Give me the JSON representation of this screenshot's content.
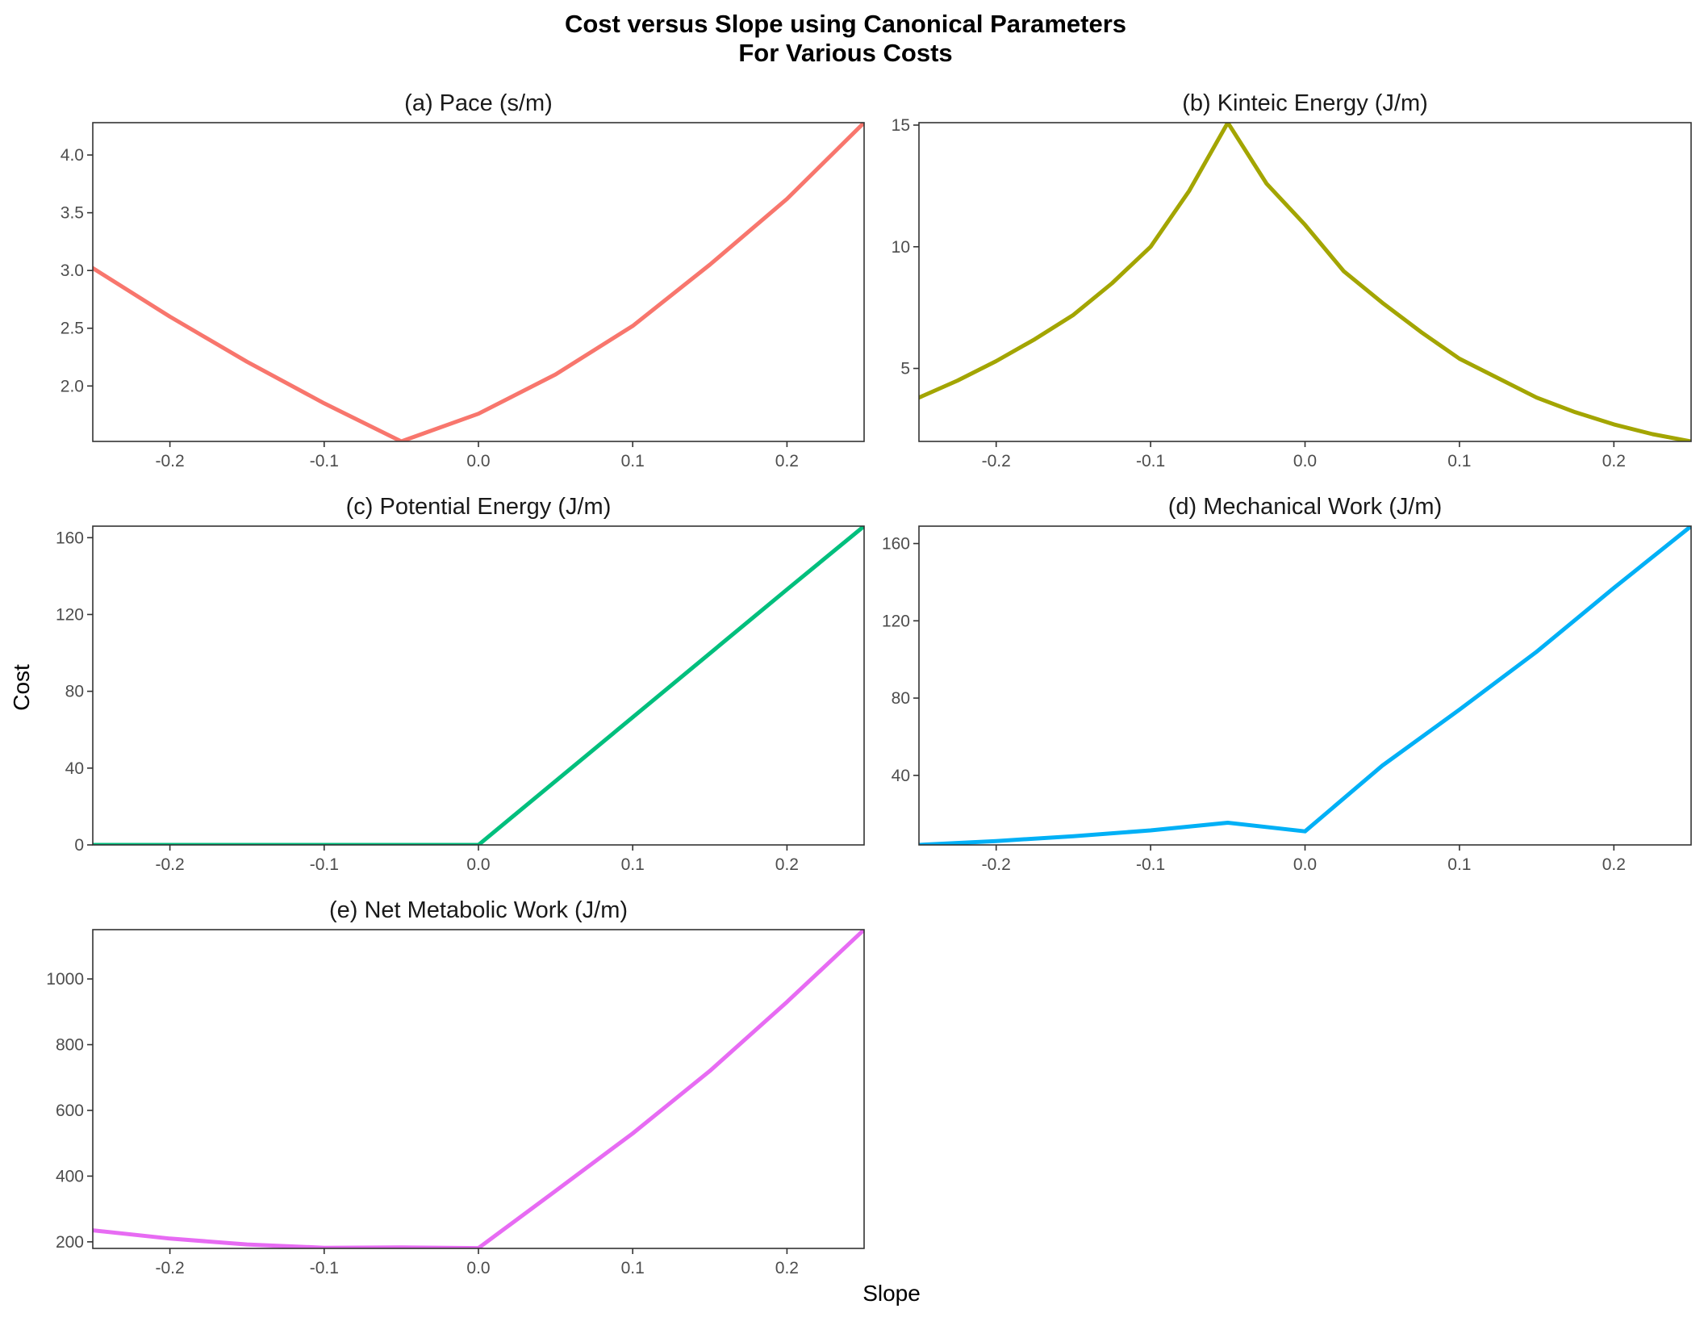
{
  "title_line1": "Cost versus Slope using Canonical Parameters",
  "title_line2": "For Various Costs",
  "xlabel": "Slope",
  "ylabel": "Cost",
  "chart_data": [
    {
      "type": "line",
      "title": "(a)  Pace (s/m)",
      "color": "#F8766D",
      "xlim": [
        -0.25,
        0.25
      ],
      "ylim": [
        1.52,
        4.28
      ],
      "xticks": [
        -0.2,
        -0.1,
        0.0,
        0.1,
        0.2
      ],
      "xtick_labels": [
        "-0.2",
        "-0.1",
        "0.0",
        "0.1",
        "0.2"
      ],
      "yticks": [
        2.0,
        2.5,
        3.0,
        3.5,
        4.0
      ],
      "ytick_labels": [
        "2.0",
        "2.5",
        "3.0",
        "3.5",
        "4.0"
      ],
      "x": [
        -0.25,
        -0.2,
        -0.15,
        -0.1,
        -0.05,
        0.0,
        0.05,
        0.1,
        0.15,
        0.2,
        0.25
      ],
      "y": [
        3.02,
        2.6,
        2.21,
        1.85,
        1.52,
        1.76,
        2.1,
        2.52,
        3.05,
        3.62,
        4.28
      ]
    },
    {
      "type": "line",
      "title": "(b)  Kinteic Energy (J/m)",
      "color": "#A3A500",
      "xlim": [
        -0.25,
        0.25
      ],
      "ylim": [
        2.0,
        15.1
      ],
      "xticks": [
        -0.2,
        -0.1,
        0.0,
        0.1,
        0.2
      ],
      "xtick_labels": [
        "-0.2",
        "-0.1",
        "0.0",
        "0.1",
        "0.2"
      ],
      "yticks": [
        5,
        10,
        15
      ],
      "ytick_labels": [
        "5",
        "10",
        "15"
      ],
      "x": [
        -0.25,
        -0.225,
        -0.2,
        -0.175,
        -0.15,
        -0.125,
        -0.1,
        -0.075,
        -0.05,
        -0.025,
        0.0,
        0.025,
        0.05,
        0.075,
        0.1,
        0.125,
        0.15,
        0.175,
        0.2,
        0.225,
        0.25
      ],
      "y": [
        3.8,
        4.5,
        5.3,
        6.2,
        7.2,
        8.5,
        10.0,
        12.3,
        15.1,
        12.6,
        10.9,
        9.0,
        7.7,
        6.5,
        5.4,
        4.6,
        3.8,
        3.2,
        2.7,
        2.3,
        2.0
      ]
    },
    {
      "type": "line",
      "title": "(c)  Potential Energy (J/m)",
      "color": "#00BF7D",
      "xlim": [
        -0.25,
        0.25
      ],
      "ylim": [
        0,
        166
      ],
      "xticks": [
        -0.2,
        -0.1,
        0.0,
        0.1,
        0.2
      ],
      "xtick_labels": [
        "-0.2",
        "-0.1",
        "0.0",
        "0.1",
        "0.2"
      ],
      "yticks": [
        0,
        40,
        80,
        120,
        160
      ],
      "ytick_labels": [
        "0",
        "40",
        "80",
        "120",
        "160"
      ],
      "x": [
        -0.25,
        -0.2,
        -0.1,
        0.0,
        0.1,
        0.2,
        0.25
      ],
      "y": [
        0,
        0,
        0,
        0,
        66.5,
        133,
        166
      ]
    },
    {
      "type": "line",
      "title": "(d)  Mechanical Work (J/m)",
      "color": "#00B0F6",
      "xlim": [
        -0.25,
        0.25
      ],
      "ylim": [
        4,
        169
      ],
      "xticks": [
        -0.2,
        -0.1,
        0.0,
        0.1,
        0.2
      ],
      "xtick_labels": [
        "-0.2",
        "-0.1",
        "0.0",
        "0.1",
        "0.2"
      ],
      "yticks": [
        40,
        80,
        120,
        160
      ],
      "ytick_labels": [
        "40",
        "80",
        "120",
        "160"
      ],
      "x": [
        -0.25,
        -0.2,
        -0.15,
        -0.1,
        -0.05,
        0.0,
        0.05,
        0.1,
        0.15,
        0.2,
        0.25
      ],
      "y": [
        4,
        6,
        8.5,
        11.5,
        15.5,
        11,
        45,
        74,
        104,
        137,
        169
      ]
    },
    {
      "type": "line",
      "title": "(e)  Net Metabolic Work (J/m)",
      "color": "#E76BF3",
      "xlim": [
        -0.25,
        0.25
      ],
      "ylim": [
        180,
        1150
      ],
      "xticks": [
        -0.2,
        -0.1,
        0.0,
        0.1,
        0.2
      ],
      "xtick_labels": [
        "-0.2",
        "-0.1",
        "0.0",
        "0.1",
        "0.2"
      ],
      "yticks": [
        200,
        400,
        600,
        800,
        1000
      ],
      "ytick_labels": [
        "200",
        "400",
        "600",
        "800",
        "1000"
      ],
      "x": [
        -0.25,
        -0.2,
        -0.15,
        -0.1,
        -0.05,
        0.0,
        0.05,
        0.1,
        0.15,
        0.2,
        0.25
      ],
      "y": [
        235,
        210,
        192,
        182,
        183,
        181,
        355,
        530,
        720,
        930,
        1150
      ]
    }
  ]
}
